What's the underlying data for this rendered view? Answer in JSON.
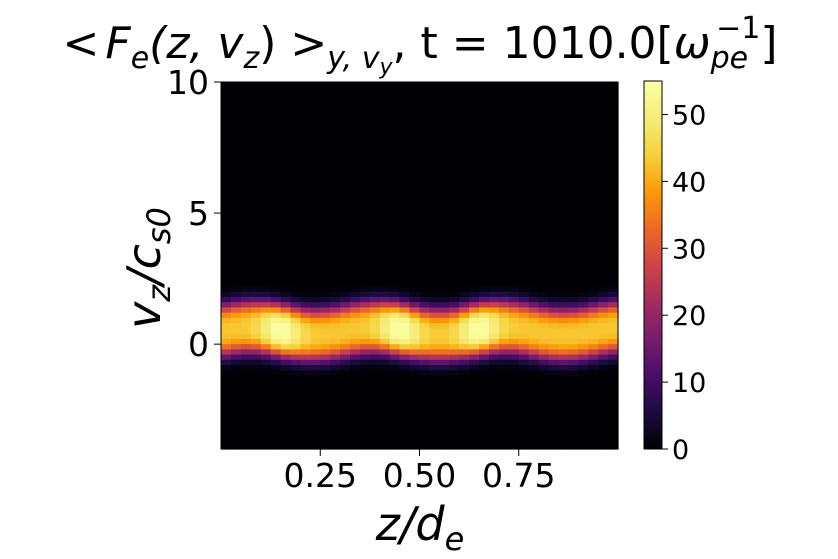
{
  "chart_data": {
    "type": "heatmap",
    "title_parts": {
      "open": "<",
      "F": "F",
      "e_sub": "e",
      "args": "(z, v",
      "z_sub": "z",
      "close": ") >",
      "avg_y": "y",
      "avg_comma": ", v",
      "avg_vy": "y",
      "time_text": ", t = 1010.0[",
      "omega": "ω",
      "omega_sub": "pe",
      "omega_sup": "−1",
      "bracket_close": "]"
    },
    "xlabel_parts": {
      "z": "z",
      "slash": "/",
      "d": "d",
      "sub": "e"
    },
    "ylabel_parts": {
      "v": "v",
      "v_sub": "z",
      "slash": "/",
      "c": "c",
      "c_sub": "s0"
    },
    "xlim": [
      0.0,
      1.0
    ],
    "ylim": [
      -4.0,
      10.0
    ],
    "xticks": [
      0.25,
      0.5,
      0.75
    ],
    "xtick_labels": [
      "0.25",
      "0.50",
      "0.75"
    ],
    "yticks": [
      10,
      5,
      0
    ],
    "ytick_labels": [
      "10",
      "5",
      "0"
    ],
    "colormap": "inferno",
    "colorbar": {
      "vmin": 0,
      "vmax": 55,
      "ticks": [
        0,
        10,
        20,
        30,
        40,
        50
      ],
      "tick_labels": [
        "0",
        "10",
        "20",
        "30",
        "40",
        "50"
      ]
    },
    "distribution": {
      "description_values": "Phase-space density concentrated in a band around v_z/c_s0 ≈ 0.5, spanning roughly -1 to 2.5, uniform in z with local maxima near z ≈ 0.15, 0.45, 0.65",
      "band_center_vz": 0.5,
      "band_width_vz": 1.0,
      "peak_value": 55,
      "hotspots_z": [
        0.15,
        0.45,
        0.65
      ]
    }
  }
}
